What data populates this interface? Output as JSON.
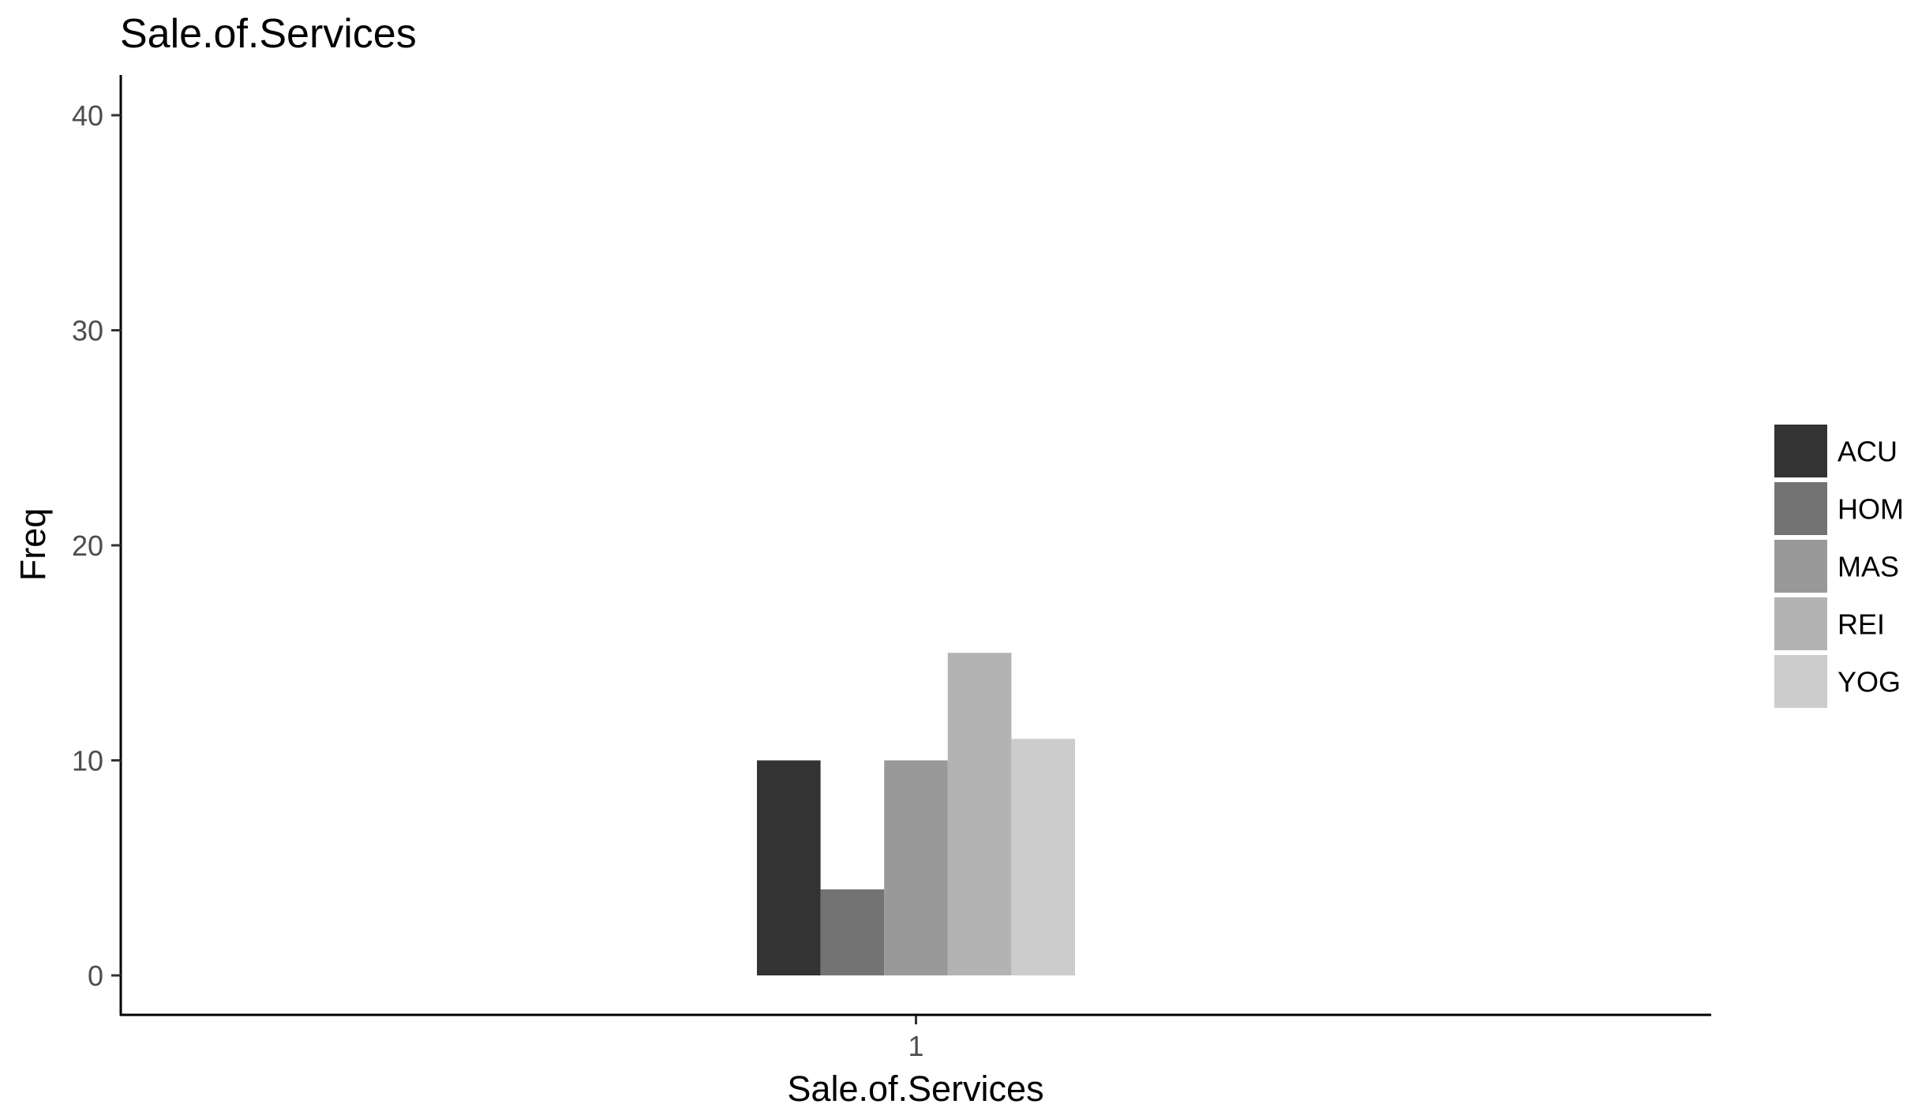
{
  "chart_data": {
    "type": "bar",
    "title": "Sale.of.Services",
    "xlabel": "Sale.of.Services",
    "ylabel": "Freq",
    "categories": [
      "1"
    ],
    "series": [
      {
        "name": "ACU",
        "values": [
          10
        ],
        "color": "#333333"
      },
      {
        "name": "HOM",
        "values": [
          4
        ],
        "color": "#737373"
      },
      {
        "name": "MAS",
        "values": [
          10
        ],
        "color": "#999999"
      },
      {
        "name": "REI",
        "values": [
          15
        ],
        "color": "#b3b3b3"
      },
      {
        "name": "YOG",
        "values": [
          11
        ],
        "color": "#cccccc"
      }
    ],
    "ylim": [
      -2,
      42
    ],
    "yticks": [
      0,
      10,
      20,
      30,
      40
    ],
    "grid": false,
    "legend_position": "right"
  }
}
